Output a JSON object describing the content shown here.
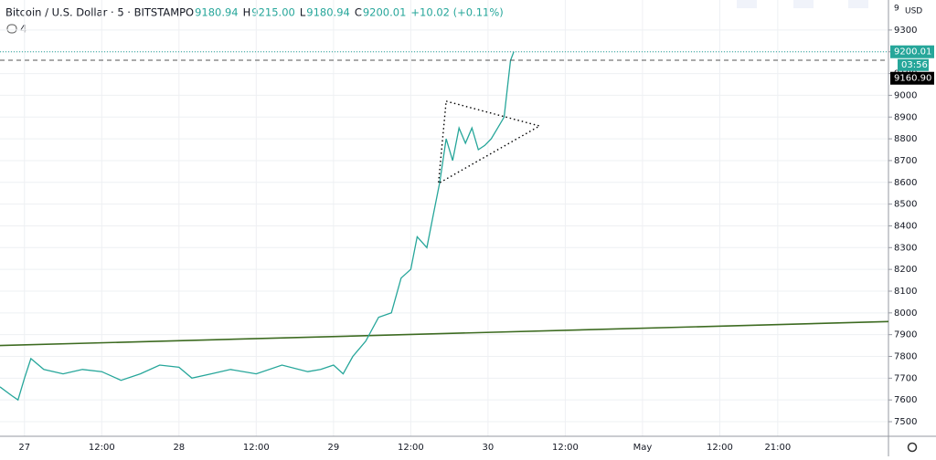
{
  "chart_data": {
    "type": "line",
    "title": "Bitcoin / U.S. Dollar · 5 · BITSTAMP",
    "ohlc_labels": [
      "O",
      "H",
      "L",
      "C"
    ],
    "ohlc_values": [
      "9180.94",
      "9215.00",
      "9180.94",
      "9200.01"
    ],
    "change": "+10.02 (+0.11%)",
    "indicator_count": "4",
    "currency": "USD",
    "top_axis_label": "9",
    "x": [
      -3.8,
      -2,
      -1,
      0,
      1,
      3,
      6,
      9,
      12,
      15,
      18,
      21,
      24,
      26,
      29,
      32,
      36,
      40,
      44,
      46,
      48,
      49.5,
      51,
      53,
      55,
      57,
      58.5,
      60,
      61,
      62.5,
      63.5,
      64.5,
      65.5,
      66.5,
      67.5,
      68.5,
      69.5,
      70.5,
      71.5,
      72.5,
      73.5,
      74.5,
      75.5,
      76
    ],
    "values": [
      7660,
      7620,
      7600,
      7700,
      7790,
      7740,
      7720,
      7740,
      7730,
      7690,
      7720,
      7760,
      7750,
      7700,
      7720,
      7740,
      7720,
      7760,
      7730,
      7740,
      7760,
      7720,
      7800,
      7870,
      7980,
      8000,
      8160,
      8200,
      8350,
      8300,
      8450,
      8600,
      8800,
      8700,
      8850,
      8780,
      8850,
      8750,
      8770,
      8800,
      8850,
      8900,
      9160,
      9200
    ],
    "color": "#26a69a",
    "xlim": [
      -3.8,
      134.2
    ],
    "ylim": [
      7433,
      9438
    ],
    "xticks": [
      {
        "value": 0,
        "label": "27"
      },
      {
        "value": 12,
        "label": "12:00"
      },
      {
        "value": 24,
        "label": "28"
      },
      {
        "value": 36,
        "label": "12:00"
      },
      {
        "value": 48,
        "label": "29"
      },
      {
        "value": 60,
        "label": "12:00"
      },
      {
        "value": 72,
        "label": "30"
      },
      {
        "value": 84,
        "label": "12:00"
      },
      {
        "value": 96,
        "label": "May"
      },
      {
        "value": 108,
        "label": "12:00"
      },
      {
        "value": 117,
        "label": "21:00"
      }
    ],
    "yticks": [
      7500,
      7600,
      7700,
      7800,
      7900,
      8000,
      8100,
      8200,
      8300,
      8400,
      8500,
      8600,
      8700,
      8800,
      8900,
      9000,
      9100,
      9200,
      9300
    ],
    "grid": true,
    "trendline": {
      "x": [
        -3.8,
        134.2
      ],
      "y": [
        7850,
        7960
      ],
      "color": "#3d6b21"
    },
    "triangle": {
      "x": [
        65.5,
        80,
        64.3
      ],
      "y": [
        8973,
        8859,
        8595
      ]
    },
    "current_price": 9200.01,
    "countdown": "03:56",
    "reference_price": {
      "value": 9160.9,
      "label": "9160.90"
    }
  }
}
